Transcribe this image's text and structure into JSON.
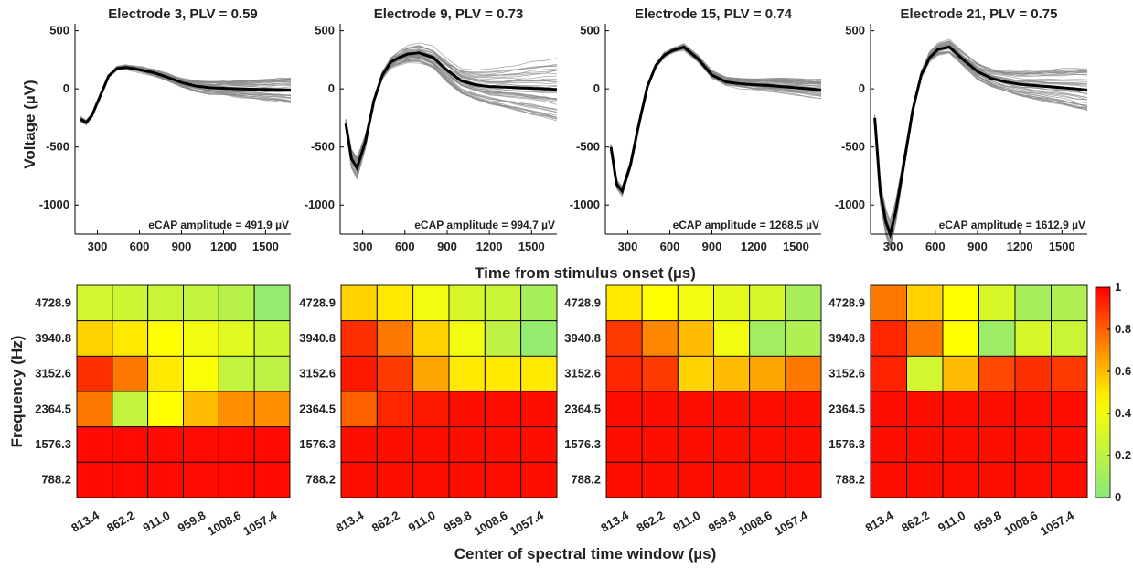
{
  "colors": {
    "mean_trace": "#000000",
    "trial_traces": "#8a8a8a",
    "axis": "#000000"
  },
  "shared": {
    "ylabel_top": "Voltage (µV)",
    "xlabel_top": "Time from stimulus onset (µs)",
    "ylabel_bottom": "Frequency (Hz)",
    "xlabel_bottom": "Center of spectral time window (µs)",
    "colorbar": {
      "ticks": [
        "1",
        "0.8",
        "0.6",
        "0.4",
        "0.2",
        "0"
      ],
      "colormap": "green-yellow-red",
      "range": [
        0,
        1
      ]
    }
  },
  "chart_data": [
    {
      "type": "line",
      "title": "Electrode 3, PLV = 0.59",
      "annotation": "eCAP amplitude = 491.9 µV",
      "xlim": [
        140,
        1680
      ],
      "ylim": [
        -1250,
        560
      ],
      "xticks": [
        300,
        600,
        900,
        1200,
        1500
      ],
      "yticks": [
        500,
        0,
        -500,
        -1000
      ],
      "x": [
        180,
        220,
        260,
        320,
        380,
        440,
        500,
        560,
        620,
        700,
        800,
        900,
        1000,
        1100,
        1200,
        1300,
        1400,
        1500,
        1600,
        1680
      ],
      "mean": [
        -260,
        -290,
        -230,
        -60,
        110,
        175,
        185,
        175,
        160,
        140,
        100,
        55,
        25,
        10,
        5,
        0,
        -3,
        -5,
        -8,
        -10
      ],
      "trace_spread": 0.18
    },
    {
      "type": "line",
      "title": "Electrode 9, PLV = 0.73",
      "annotation": "eCAP amplitude = 994.7 µV",
      "xlim": [
        140,
        1680
      ],
      "ylim": [
        -1250,
        560
      ],
      "xticks": [
        300,
        600,
        900,
        1200,
        1500
      ],
      "yticks": [
        500,
        0,
        -500,
        -1000
      ],
      "x": [
        180,
        220,
        260,
        320,
        380,
        440,
        500,
        560,
        620,
        700,
        800,
        900,
        1000,
        1100,
        1200,
        1300,
        1400,
        1500,
        1600,
        1680
      ],
      "mean": [
        -300,
        -600,
        -680,
        -450,
        -100,
        120,
        230,
        270,
        300,
        310,
        270,
        160,
        70,
        35,
        20,
        15,
        10,
        5,
        0,
        -5
      ],
      "trace_spread": 0.45
    },
    {
      "type": "line",
      "title": "Electrode 15, PLV = 0.74",
      "annotation": "eCAP amplitude = 1268.5 µV",
      "xlim": [
        140,
        1680
      ],
      "ylim": [
        -1250,
        560
      ],
      "xticks": [
        300,
        600,
        900,
        1200,
        1500
      ],
      "yticks": [
        500,
        0,
        -500,
        -1000
      ],
      "x": [
        180,
        220,
        260,
        320,
        380,
        440,
        500,
        560,
        620,
        700,
        800,
        900,
        1000,
        1100,
        1200,
        1300,
        1400,
        1500,
        1600,
        1680
      ],
      "mean": [
        -500,
        -820,
        -880,
        -650,
        -300,
        20,
        200,
        290,
        330,
        360,
        260,
        120,
        60,
        45,
        35,
        30,
        20,
        10,
        0,
        -10
      ],
      "trace_spread": 0.15
    },
    {
      "type": "line",
      "title": "Electrode 21, PLV = 0.75",
      "annotation": "eCAP amplitude = 1612.9 µV",
      "xlim": [
        140,
        1680
      ],
      "ylim": [
        -1250,
        560
      ],
      "xticks": [
        300,
        600,
        900,
        1200,
        1500
      ],
      "yticks": [
        500,
        0,
        -500,
        -1000
      ],
      "x": [
        170,
        210,
        250,
        280,
        320,
        380,
        440,
        500,
        560,
        620,
        700,
        800,
        900,
        1000,
        1100,
        1200,
        1300,
        1400,
        1500,
        1600,
        1680
      ],
      "mean": [
        -250,
        -900,
        -1150,
        -1250,
        -1050,
        -620,
        -180,
        120,
        270,
        340,
        360,
        250,
        150,
        90,
        60,
        40,
        30,
        20,
        10,
        0,
        -10
      ],
      "trace_spread": 0.32
    },
    {
      "type": "heatmap",
      "rows": [
        "4728.9",
        "3940.8",
        "3152.6",
        "2364.5",
        "1576.3",
        "788.2"
      ],
      "cols": [
        "813.4",
        "862.2",
        "911.0",
        "959.8",
        "1008.6",
        "1057.4"
      ],
      "values": [
        [
          0.28,
          0.27,
          0.25,
          0.22,
          0.18,
          0.05
        ],
        [
          0.55,
          0.5,
          0.45,
          0.4,
          0.33,
          0.27
        ],
        [
          0.9,
          0.75,
          0.5,
          0.43,
          0.22,
          0.2
        ],
        [
          0.75,
          0.22,
          0.45,
          0.6,
          0.7,
          0.7
        ],
        [
          0.98,
          0.98,
          0.98,
          0.98,
          0.98,
          0.98
        ],
        [
          0.98,
          0.98,
          0.98,
          0.98,
          0.98,
          0.98
        ]
      ]
    },
    {
      "type": "heatmap",
      "rows": [
        "4728.9",
        "3940.8",
        "3152.6",
        "2364.5",
        "1576.3",
        "788.2"
      ],
      "cols": [
        "813.4",
        "862.2",
        "911.0",
        "959.8",
        "1008.6",
        "1057.4"
      ],
      "values": [
        [
          0.55,
          0.5,
          0.4,
          0.3,
          0.25,
          0.12
        ],
        [
          0.9,
          0.75,
          0.55,
          0.4,
          0.2,
          0.05
        ],
        [
          0.95,
          0.88,
          0.65,
          0.5,
          0.5,
          0.5
        ],
        [
          0.8,
          0.92,
          0.95,
          0.97,
          0.97,
          0.97
        ],
        [
          0.97,
          0.97,
          0.97,
          0.97,
          0.97,
          0.97
        ],
        [
          0.97,
          0.97,
          0.97,
          0.97,
          0.97,
          0.97
        ]
      ]
    },
    {
      "type": "heatmap",
      "rows": [
        "4728.9",
        "3940.8",
        "3152.6",
        "2364.5",
        "1576.3",
        "788.2"
      ],
      "cols": [
        "813.4",
        "862.2",
        "911.0",
        "959.8",
        "1008.6",
        "1057.4"
      ],
      "values": [
        [
          0.5,
          0.45,
          0.4,
          0.35,
          0.3,
          0.12
        ],
        [
          0.88,
          0.72,
          0.6,
          0.4,
          0.1,
          0.15
        ],
        [
          0.92,
          0.88,
          0.55,
          0.6,
          0.65,
          0.75
        ],
        [
          0.97,
          0.97,
          0.97,
          0.97,
          0.97,
          0.97
        ],
        [
          0.97,
          0.97,
          0.97,
          0.97,
          0.97,
          0.97
        ],
        [
          0.97,
          0.97,
          0.97,
          0.97,
          0.97,
          0.97
        ]
      ]
    },
    {
      "type": "heatmap",
      "rows": [
        "4728.9",
        "3940.8",
        "3152.6",
        "2364.5",
        "1576.3",
        "788.2"
      ],
      "cols": [
        "813.4",
        "862.2",
        "911.0",
        "959.8",
        "1008.6",
        "1057.4"
      ],
      "values": [
        [
          0.75,
          0.55,
          0.45,
          0.3,
          0.12,
          0.15
        ],
        [
          0.92,
          0.75,
          0.45,
          0.08,
          0.3,
          0.25
        ],
        [
          0.93,
          0.28,
          0.6,
          0.85,
          0.9,
          0.88
        ],
        [
          0.97,
          0.97,
          0.97,
          0.97,
          0.97,
          0.97
        ],
        [
          0.97,
          0.97,
          0.97,
          0.97,
          0.97,
          0.97
        ],
        [
          0.97,
          0.97,
          0.97,
          0.97,
          0.97,
          0.97
        ]
      ]
    }
  ]
}
